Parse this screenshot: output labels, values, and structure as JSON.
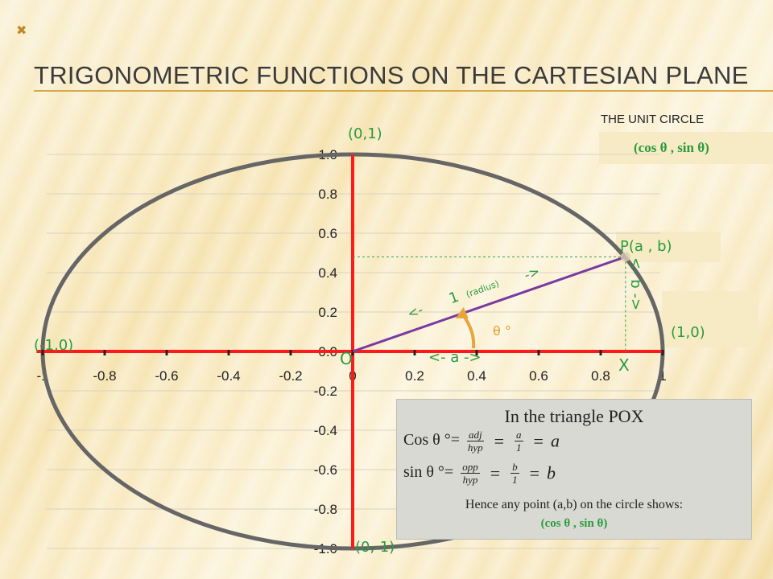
{
  "slide": {
    "title": "TRIGONOMETRIC FUNCTIONS ON THE CARTESIAN PLANE",
    "title_mark": "✖",
    "unit_circle_title": "THE UNIT CIRCLE",
    "unit_circle_formula": "(cos θ , sin θ)"
  },
  "labels": {
    "top": "(0,1)",
    "bottom": "(0,-1)",
    "left": "(-1,0)",
    "right": "(1,0)",
    "point_p": "P(a , b)",
    "origin": "O",
    "x_point": "X",
    "radius_one": "1",
    "radius_word": "(radius)",
    "theta": "θ °",
    "a_label": "<-   a   ->",
    "b_label": "<-   b   ->",
    "radius_arrow_left": "<-",
    "radius_arrow_right": "->"
  },
  "chart_data": {
    "type": "scatter",
    "x_ticks": [
      "-1",
      "-0.8",
      "-0.6",
      "-0.4",
      "-0.2",
      "0",
      "0.2",
      "0.4",
      "0.6",
      "0.8",
      "1"
    ],
    "y_ticks": [
      "1.0",
      "0.8",
      "0.6",
      "0.4",
      "0.2",
      "0.0",
      "-0.2",
      "-0.4",
      "-0.6",
      "-0.8",
      "-1.0"
    ],
    "xlim": [
      -1,
      1
    ],
    "ylim": [
      -1,
      1
    ],
    "circle_radius": 1,
    "point": {
      "x": 0.88,
      "y": 0.48
    },
    "grid": true
  },
  "triangle_box": {
    "title": "In the triangle POX",
    "cos_lhs": "Cos θ °=",
    "sin_lhs": "sin θ °=",
    "cos_num": "adj",
    "cos_den": "hyp",
    "sin_num": "opp",
    "sin_den": "hyp",
    "cos_num2": "a",
    "sin_num2": "b",
    "den2": "1",
    "cos_result": "a",
    "sin_result": "b",
    "equals": "=",
    "hence_line": "Hence  any point (a,b) on the circle shows:",
    "hence_formula": "(cos θ , sin θ)"
  },
  "colors": {
    "axis": "#ff1a1a",
    "radius": "#7a3aa0",
    "circle": "#666666",
    "label_green": "#2a9b3c",
    "arc": "#e7a53a"
  }
}
